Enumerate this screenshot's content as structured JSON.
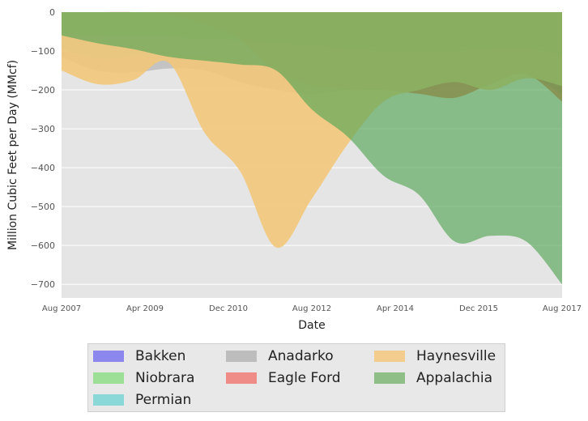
{
  "chart_data": {
    "type": "area",
    "xlabel": "Date",
    "ylabel": "Million Cubic Feet per Day (MMcf)",
    "ylim": [
      -735,
      0
    ],
    "yticks": [
      0,
      -100,
      -200,
      -300,
      -400,
      -500,
      -600,
      -700
    ],
    "ytick_labels": [
      "0",
      "−100",
      "−200",
      "−300",
      "−400",
      "−500",
      "−600",
      "−700"
    ],
    "xtick_labels": [
      "Aug 2007",
      "Apr 2009",
      "Dec 2010",
      "Aug 2012",
      "Apr 2014",
      "Dec 2015",
      "Aug 2017"
    ],
    "grid": true,
    "legend_position": "bottom-center",
    "background_color": "#e5e5e5",
    "x": [
      "Aug 2007",
      "Aug 2008",
      "Apr 2009",
      "Aug 2009",
      "Aug 2010",
      "Dec 2010",
      "Aug 2011",
      "Aug 2012",
      "Aug 2013",
      "Apr 2014",
      "Aug 2014",
      "Aug 2015",
      "Dec 2015",
      "Aug 2016",
      "Aug 2017"
    ],
    "series": [
      {
        "name": "Bakken",
        "color": "#2c5aa0",
        "fill": "#2c5aa0",
        "opacity": 0.95,
        "values": [
          0,
          -2,
          -4,
          -5,
          -8,
          -10,
          -14,
          -20,
          -30,
          -36,
          -40,
          -42,
          -40,
          -38,
          -40
        ]
      },
      {
        "name": "Niobrara",
        "color": "#4ecb6e",
        "fill": "#4ecb6e",
        "opacity": 0.75,
        "values": [
          -55,
          -58,
          -60,
          -62,
          -68,
          -72,
          -80,
          -85,
          -95,
          -100,
          -100,
          -100,
          -95,
          -92,
          -110
        ]
      },
      {
        "name": "Permian",
        "color": "#3ac0bf",
        "fill": "#5fc9c7",
        "opacity": 0.6,
        "values": [
          -95,
          -120,
          -115,
          -110,
          -115,
          -125,
          -140,
          -145,
          -140,
          -135,
          -145,
          -155,
          -150,
          -160,
          -210
        ]
      },
      {
        "name": "Anadarko",
        "color": "#9a9a9a",
        "fill": "#a8a8a8",
        "opacity": 0.55,
        "values": [
          -115,
          -150,
          -155,
          -145,
          -150,
          -180,
          -200,
          -210,
          -200,
          -190,
          -180,
          -170,
          -160,
          -150,
          -180
        ]
      },
      {
        "name": "Eagle Ford",
        "color": "#e8604a",
        "fill": "#e4582e",
        "opacity": 0.75,
        "values": [
          0,
          0,
          0,
          -5,
          -30,
          -70,
          -150,
          -190,
          -200,
          -200,
          -210,
          -220,
          -185,
          -160,
          -230
        ]
      },
      {
        "name": "Haynesville",
        "color": "#f5c66e",
        "fill": "#f2c87a",
        "opacity": 0.9,
        "values": [
          -150,
          -185,
          -175,
          -130,
          -310,
          -410,
          -605,
          -480,
          -340,
          -230,
          -200,
          -180,
          -200,
          -170,
          -190
        ]
      },
      {
        "name": "Appalachia",
        "color": "#3a9a3a",
        "fill": "#54a554",
        "opacity": 0.65,
        "values": [
          -60,
          -80,
          -95,
          -115,
          -125,
          -135,
          -150,
          -250,
          -320,
          -420,
          -470,
          -590,
          -575,
          -590,
          -700
        ]
      }
    ],
    "legend": [
      {
        "name": "Bakken",
        "swatch": "#8c87ec"
      },
      {
        "name": "Niobrara",
        "swatch": "#9ddf96"
      },
      {
        "name": "Permian",
        "swatch": "#8ad8d8"
      },
      {
        "name": "Anadarko",
        "swatch": "#bdbdbd"
      },
      {
        "name": "Eagle Ford",
        "swatch": "#ef8c87"
      },
      {
        "name": "Haynesville",
        "swatch": "#f2cd8d"
      },
      {
        "name": "Appalachia",
        "swatch": "#8fbf87"
      }
    ]
  }
}
